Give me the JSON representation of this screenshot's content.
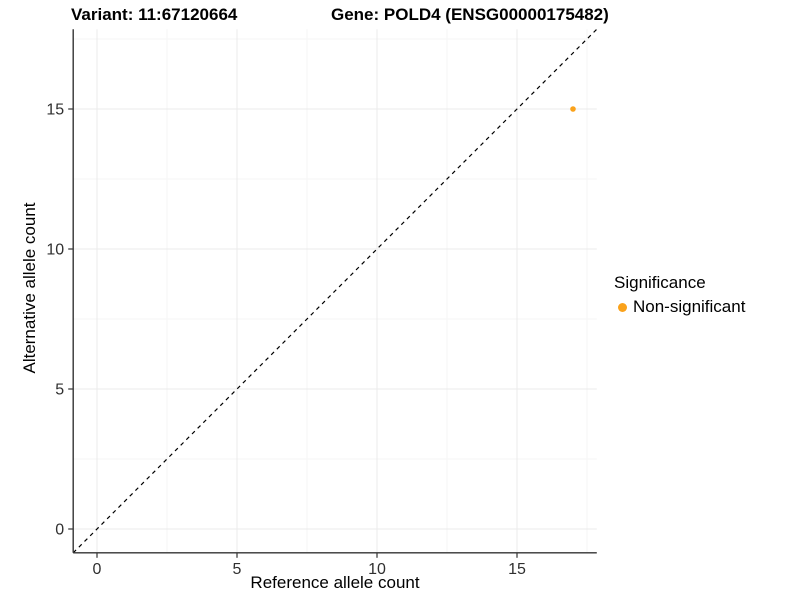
{
  "chart_data": {
    "type": "scatter",
    "title_left": "Variant: 11:67120664",
    "title_right": "Gene: POLD4 (ENSG00000175482)",
    "xlabel": "Reference allele count",
    "ylabel": "Alternative allele count",
    "xlim": [
      -0.85,
      17.85
    ],
    "ylim": [
      -0.85,
      17.85
    ],
    "x_ticks": [
      0,
      5,
      10,
      15
    ],
    "y_ticks": [
      0,
      5,
      10,
      15
    ],
    "x_minor_ticks": [
      2.5,
      7.5,
      12.5,
      17.5
    ],
    "y_minor_ticks": [
      2.5,
      7.5,
      12.5,
      17.5
    ],
    "grid": true,
    "points": [
      {
        "x": 17,
        "y": 15,
        "series": "Non-significant",
        "color": "#FAA21B"
      }
    ],
    "reference_line": {
      "slope": 1,
      "intercept": 0,
      "style": "dashed",
      "color": "#000000"
    },
    "legend": {
      "position": "right",
      "title": "Significance",
      "entries": [
        {
          "label": "Non-significant",
          "color": "#FAA21B"
        }
      ]
    }
  },
  "style": {
    "background": "#FFFFFF",
    "axis_line_color": "#333333",
    "tick_mark_color": "#333333",
    "tick_label_color": "#303030",
    "grid_major_color": "#EBEBEB",
    "grid_minor_color": "#F5F5F5",
    "point_radius": 2.8,
    "legend_dot_diameter": 9
  }
}
